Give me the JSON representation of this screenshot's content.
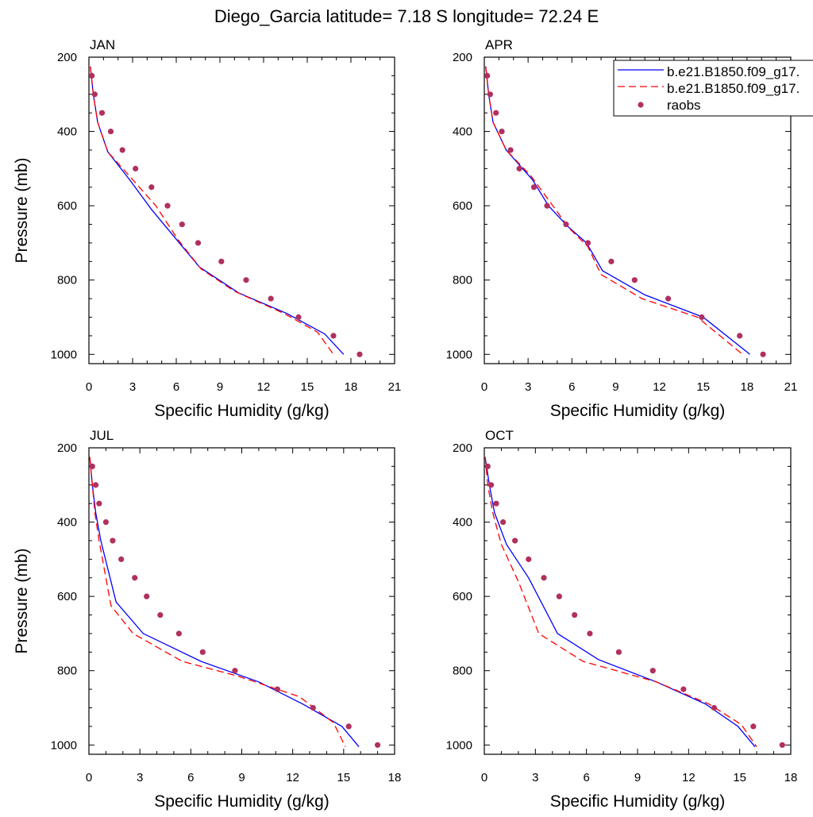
{
  "title": "Diego_Garcia  latitude= 7.18 S longitude= 72.24 E",
  "legend": {
    "items": [
      {
        "label": "b.e21.B1850.f09_g17.",
        "color": "#0000ff",
        "style": "solid"
      },
      {
        "label": "b.e21.B1850.f09_g17.",
        "color": "#ff0000",
        "style": "dashed"
      },
      {
        "label": "raobs",
        "color": "#b03060",
        "style": "dot"
      }
    ],
    "placement": "top-right of APR panel"
  },
  "chart_data": [
    {
      "type": "line",
      "panel": "JAN",
      "title": "JAN",
      "xlabel": "Specific Humidity (g/kg)",
      "ylabel": "Pressure (mb)",
      "xlim": [
        0,
        21
      ],
      "ylim": [
        1025,
        200
      ],
      "xticks": [
        0,
        3,
        6,
        9,
        12,
        15,
        18,
        21
      ],
      "yticks": [
        200,
        400,
        600,
        800,
        1000
      ],
      "series": [
        {
          "color": "#0000ff",
          "style": "solid",
          "x": [
            0.1,
            0.3,
            0.6,
            1.3,
            2.8,
            4.3,
            6.0,
            7.6,
            10.3,
            13.6,
            16.2,
            17.5
          ],
          "y": [
            225,
            300,
            375,
            455,
            530,
            610,
            690,
            765,
            835,
            890,
            945,
            1000
          ]
        },
        {
          "color": "#ff0000",
          "style": "dashed",
          "x": [
            0.1,
            0.3,
            0.6,
            1.3,
            2.9,
            4.6,
            6.1,
            7.7,
            10.0,
            13.4,
            15.7,
            16.8
          ],
          "y": [
            225,
            300,
            375,
            455,
            525,
            600,
            690,
            770,
            830,
            890,
            940,
            1000
          ]
        },
        {
          "color": "#b03060",
          "style": "dot",
          "x": [
            0.2,
            0.4,
            0.9,
            1.5,
            2.3,
            3.2,
            4.3,
            5.4,
            6.4,
            7.5,
            9.1,
            10.8,
            12.5,
            14.4,
            16.8,
            18.6
          ],
          "y": [
            250,
            300,
            350,
            400,
            450,
            500,
            550,
            600,
            650,
            700,
            750,
            800,
            850,
            900,
            950,
            1000
          ]
        }
      ]
    },
    {
      "type": "line",
      "panel": "APR",
      "title": "APR",
      "xlabel": "Specific Humidity (g/kg)",
      "ylabel": "",
      "xlim": [
        0,
        21
      ],
      "ylim": [
        1025,
        200
      ],
      "xticks": [
        0,
        3,
        6,
        9,
        12,
        15,
        18,
        21
      ],
      "yticks": [
        200,
        400,
        600,
        800,
        1000
      ],
      "series": [
        {
          "color": "#0000ff",
          "style": "solid",
          "x": [
            0.1,
            0.3,
            0.6,
            1.5,
            3.3,
            4.4,
            5.7,
            7.0,
            8.1,
            11.0,
            15.0,
            18.2
          ],
          "y": [
            225,
            300,
            375,
            450,
            530,
            600,
            655,
            700,
            775,
            840,
            900,
            1000
          ]
        },
        {
          "color": "#ff0000",
          "style": "dashed",
          "x": [
            0.1,
            0.3,
            0.6,
            1.5,
            3.2,
            4.7,
            5.8,
            7.1,
            8.0,
            10.8,
            14.6,
            17.7
          ],
          "y": [
            225,
            300,
            375,
            450,
            520,
            600,
            660,
            710,
            785,
            850,
            900,
            1000
          ]
        },
        {
          "color": "#b03060",
          "style": "dot",
          "x": [
            0.2,
            0.4,
            0.8,
            1.2,
            1.8,
            2.4,
            3.4,
            4.3,
            5.6,
            7.1,
            8.7,
            10.3,
            12.6,
            14.9,
            17.5,
            19.1
          ],
          "y": [
            250,
            300,
            350,
            400,
            450,
            500,
            550,
            600,
            650,
            700,
            750,
            800,
            850,
            900,
            950,
            1000
          ]
        }
      ]
    },
    {
      "type": "line",
      "panel": "JUL",
      "title": "JUL",
      "xlabel": "Specific Humidity (g/kg)",
      "ylabel": "Pressure (mb)",
      "xlim": [
        0,
        18
      ],
      "ylim": [
        1025,
        200
      ],
      "xticks": [
        0,
        3,
        6,
        9,
        12,
        15,
        18
      ],
      "yticks": [
        200,
        400,
        600,
        800,
        1000
      ],
      "series": [
        {
          "color": "#0000ff",
          "style": "solid",
          "x": [
            0.05,
            0.2,
            0.4,
            0.7,
            1.6,
            3.2,
            6.6,
            10.0,
            12.6,
            14.9,
            15.9
          ],
          "y": [
            225,
            300,
            375,
            450,
            615,
            700,
            775,
            830,
            890,
            950,
            1005
          ]
        },
        {
          "color": "#ff0000",
          "style": "dashed",
          "x": [
            0.05,
            0.2,
            0.35,
            0.6,
            1.3,
            2.6,
            5.5,
            8.8,
            12.4,
            14.4,
            15.1
          ],
          "y": [
            225,
            300,
            375,
            450,
            625,
            700,
            775,
            815,
            870,
            940,
            1005
          ]
        },
        {
          "color": "#b03060",
          "style": "dot",
          "x": [
            0.2,
            0.4,
            0.6,
            1.0,
            1.4,
            1.9,
            2.7,
            3.4,
            4.2,
            5.3,
            6.7,
            8.6,
            11.1,
            13.2,
            15.3,
            17.0
          ],
          "y": [
            250,
            300,
            350,
            400,
            450,
            500,
            550,
            600,
            650,
            700,
            750,
            800,
            850,
            900,
            950,
            1000
          ]
        }
      ]
    },
    {
      "type": "line",
      "panel": "OCT",
      "title": "OCT",
      "xlabel": "Specific Humidity (g/kg)",
      "ylabel": "",
      "xlim": [
        0,
        18
      ],
      "ylim": [
        1025,
        200
      ],
      "xticks": [
        0,
        3,
        6,
        9,
        12,
        15,
        18
      ],
      "yticks": [
        200,
        400,
        600,
        800,
        1000
      ],
      "series": [
        {
          "color": "#0000ff",
          "style": "solid",
          "x": [
            0.05,
            0.3,
            0.6,
            1.3,
            2.6,
            4.3,
            6.7,
            10.1,
            13.0,
            14.9,
            15.9
          ],
          "y": [
            225,
            300,
            375,
            460,
            550,
            700,
            770,
            830,
            890,
            950,
            1005
          ]
        },
        {
          "color": "#ff0000",
          "style": "dashed",
          "x": [
            0.05,
            0.2,
            0.5,
            1.0,
            2.0,
            3.2,
            5.8,
            10.1,
            13.2,
            15.1,
            16.0
          ],
          "y": [
            225,
            300,
            375,
            460,
            560,
            700,
            775,
            830,
            890,
            945,
            1005
          ]
        },
        {
          "color": "#b03060",
          "style": "dot",
          "x": [
            0.2,
            0.4,
            0.7,
            1.1,
            1.8,
            2.6,
            3.5,
            4.4,
            5.3,
            6.2,
            7.9,
            9.9,
            11.7,
            13.5,
            15.8,
            17.5
          ],
          "y": [
            250,
            300,
            350,
            400,
            450,
            500,
            550,
            600,
            650,
            700,
            750,
            800,
            850,
            900,
            950,
            1000
          ]
        }
      ]
    }
  ]
}
